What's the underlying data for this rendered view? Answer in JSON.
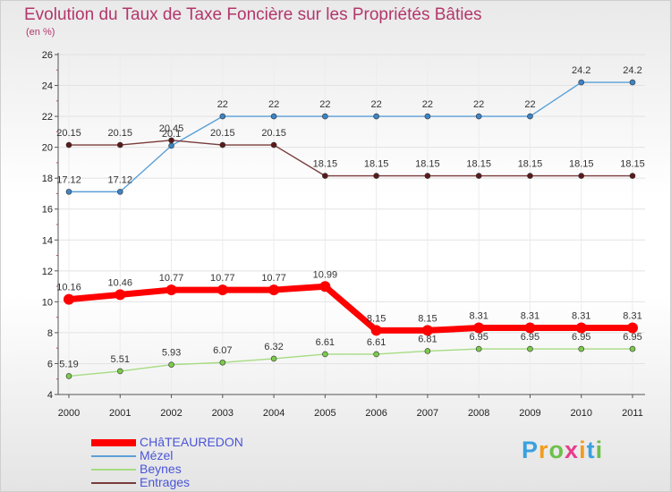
{
  "chart_data": {
    "type": "line",
    "title": "Evolution du Taux de Taxe Foncière sur les Propriétés Bâties",
    "ylabel": "(en %)",
    "xlabel": "",
    "ylim": [
      4,
      26
    ],
    "yticks": [
      "4",
      "6",
      "8",
      "10",
      "12",
      "14",
      "16",
      "18",
      "20",
      "22",
      "24",
      "26"
    ],
    "categories": [
      "2000",
      "2001",
      "2002",
      "2003",
      "2004",
      "2005",
      "2006",
      "2007",
      "2008",
      "2009",
      "2010",
      "2011"
    ],
    "series": [
      {
        "name": "Mézel",
        "color": "#5aa0d8",
        "marker": "#3d84c6",
        "values": [
          17.12,
          17.12,
          20.1,
          22,
          22,
          22,
          22,
          22,
          22,
          22,
          24.2,
          24.2
        ],
        "labels": [
          "17.12",
          "17.12",
          "20.1",
          "22",
          "22",
          "22",
          "22",
          "22",
          "22",
          "22",
          "24.2",
          "24.2"
        ]
      },
      {
        "name": "Entrages",
        "color": "#7a3b3b",
        "marker": "#5a1a1a",
        "values": [
          20.15,
          20.15,
          20.45,
          20.15,
          20.15,
          18.15,
          18.15,
          18.15,
          18.15,
          18.15,
          18.15,
          18.15
        ],
        "labels": [
          "20.15",
          "20.15",
          "20.45",
          "20.15",
          "20.15",
          "18.15",
          "18.15",
          "18.15",
          "18.15",
          "18.15",
          "18.15",
          "18.15"
        ]
      },
      {
        "name": "Beynes",
        "color": "#a6dc82",
        "marker": "#7cc94c",
        "values": [
          5.19,
          5.51,
          5.93,
          6.07,
          6.32,
          6.61,
          6.61,
          6.81,
          6.95,
          6.95,
          6.95,
          6.95
        ],
        "labels": [
          "5.19",
          "5.51",
          "5.93",
          "6.07",
          "6.32",
          "6.61",
          "6.61",
          "6.81",
          "6.95",
          "6.95",
          "6.95",
          "6.95"
        ]
      },
      {
        "name": "CHâTEAUREDON",
        "color": "#ff0000",
        "marker": "#ff0000",
        "values": [
          10.16,
          10.46,
          10.77,
          10.77,
          10.77,
          10.99,
          8.15,
          8.15,
          8.31,
          8.31,
          8.31,
          8.31
        ],
        "labels": [
          "10.16",
          "10.46",
          "10.77",
          "10.77",
          "10.77",
          "10.99",
          "8.15",
          "8.15",
          "8.31",
          "8.31",
          "8.31",
          "8.31"
        ]
      }
    ],
    "legend": [
      "CHâTEAUREDON",
      "Mézel",
      "Beynes",
      "Entrages"
    ]
  },
  "logo": {
    "letters": [
      "P",
      "r",
      "o",
      "x",
      "i",
      "t",
      "i"
    ],
    "colors": [
      "#3aa0e0",
      "#f39c1c",
      "#6cc04a",
      "#e83c8c",
      "#f39c1c",
      "#3aa0e0",
      "#6cc04a"
    ]
  }
}
